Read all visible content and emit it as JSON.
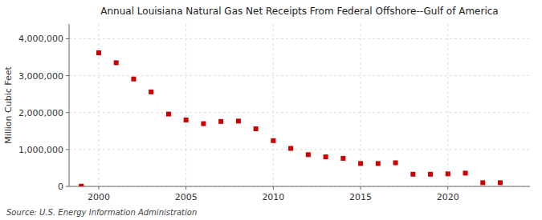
{
  "chart_data": {
    "type": "scatter",
    "title": "Annual Louisiana Natural Gas Net Receipts From Federal Offshore--Gulf of America",
    "ylabel": "Million Cubic Feet",
    "annotations": [
      "Source: U.S. Energy Information Administration"
    ],
    "x": [
      1999,
      2000,
      2001,
      2002,
      2003,
      2004,
      2005,
      2006,
      2007,
      2008,
      2009,
      2010,
      2011,
      2012,
      2013,
      2014,
      2015,
      2016,
      2017,
      2018,
      2019,
      2020,
      2021,
      2022,
      2023
    ],
    "values": [
      5000,
      3620000,
      3350000,
      2910000,
      2560000,
      1960000,
      1800000,
      1700000,
      1760000,
      1770000,
      1560000,
      1240000,
      1030000,
      860000,
      800000,
      760000,
      620000,
      620000,
      640000,
      330000,
      330000,
      340000,
      360000,
      100000,
      100000
    ],
    "color": "#CC0000",
    "marker": "square",
    "grid": true,
    "xlim": [
      1998.3,
      2024.7
    ],
    "xticks": [
      2000,
      2005,
      2010,
      2015,
      2020
    ],
    "ylim": [
      0,
      4400000
    ],
    "yticks": [
      0,
      {
        "value": 1000000,
        "label": "1,000,000"
      },
      {
        "value": 2000000,
        "label": "2,000,000"
      },
      {
        "value": 3000000,
        "label": "3,000,000"
      },
      {
        "value": 4000000,
        "label": "4,000,000"
      }
    ]
  }
}
